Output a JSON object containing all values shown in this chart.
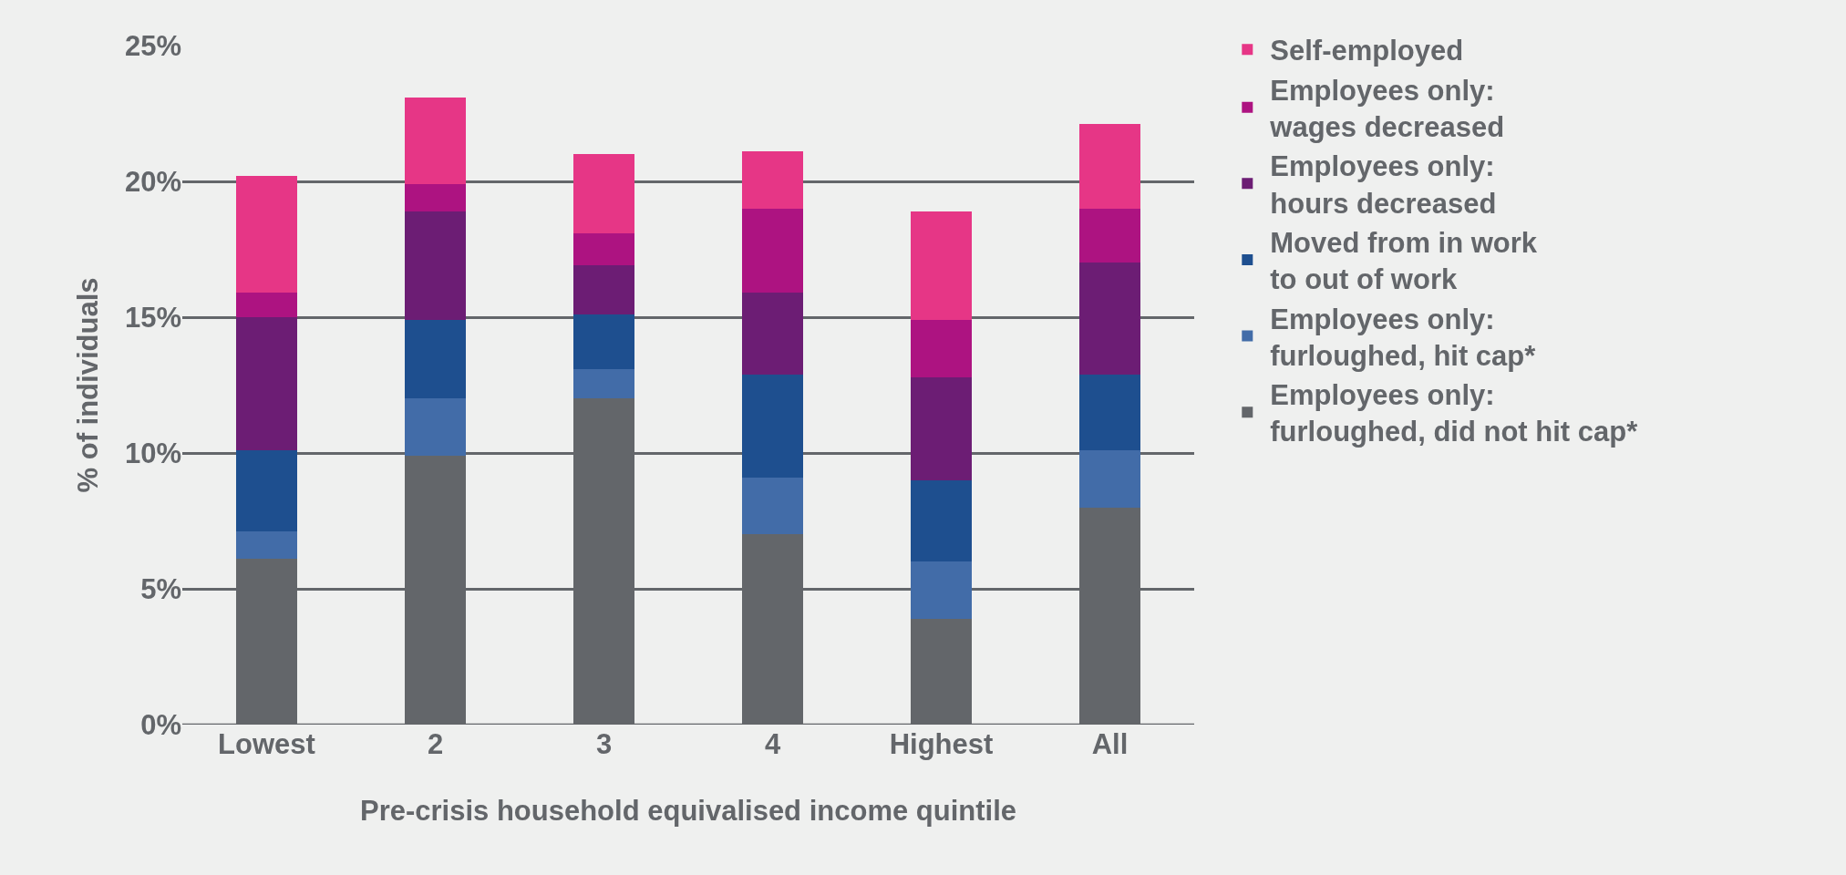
{
  "chart_data": {
    "type": "bar",
    "stacked": true,
    "xlabel": "Pre-crisis household equivalised income quintile",
    "ylabel": "% of individuals",
    "categories": [
      "Lowest",
      "2",
      "3",
      "4",
      "Highest",
      "All"
    ],
    "series": [
      {
        "name": "Employees only: furloughed, did not hit cap*",
        "color": "#63666a",
        "values": [
          6.1,
          9.9,
          12.0,
          7.0,
          3.9,
          8.0
        ]
      },
      {
        "name": "Employees only: furloughed, hit cap*",
        "color": "#426ca8",
        "values": [
          1.0,
          2.1,
          1.1,
          2.1,
          2.1,
          2.1
        ]
      },
      {
        "name": "Moved from in work to out of work",
        "color": "#1e4f8f",
        "values": [
          3.0,
          2.9,
          2.0,
          3.8,
          3.0,
          2.8
        ]
      },
      {
        "name": "Employees only: hours decreased",
        "color": "#6c1d74",
        "values": [
          4.9,
          4.0,
          1.8,
          3.0,
          3.8,
          4.1
        ]
      },
      {
        "name": "Employees only: wages decreased",
        "color": "#ad1381",
        "values": [
          0.9,
          1.0,
          1.2,
          3.1,
          2.1,
          2.0
        ]
      },
      {
        "name": "Self-employed",
        "color": "#e63686",
        "values": [
          4.3,
          3.2,
          2.9,
          2.1,
          4.0,
          3.1
        ]
      }
    ],
    "ylim": [
      0,
      25
    ],
    "yticks": [
      {
        "value": 0,
        "label": "0%"
      },
      {
        "value": 5,
        "label": "5%"
      },
      {
        "value": 10,
        "label": "10%"
      },
      {
        "value": 15,
        "label": "15%"
      },
      {
        "value": 20,
        "label": "20%"
      },
      {
        "value": 25,
        "label": "25%"
      }
    ],
    "grid": "y",
    "legend": "right"
  }
}
